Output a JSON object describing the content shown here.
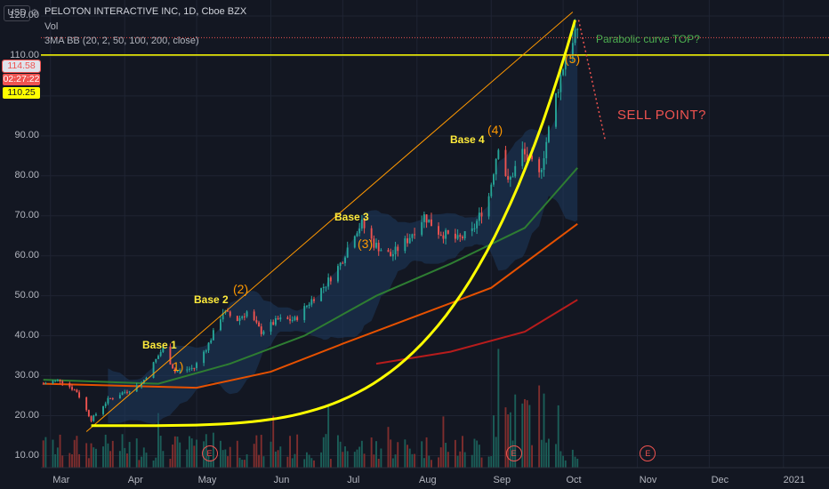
{
  "header": {
    "title": "PELOTON INTERACTIVE INC, 1D, Cboe BZX",
    "volume_label": "Vol",
    "indicator": "3MA BB (20, 2, 50, 100, 200, close)",
    "currency": "USD",
    "settings_icon": "gear-icon"
  },
  "price_tags": {
    "last_close": "114.58",
    "countdown": "02:27:22",
    "level": "110.25"
  },
  "annotations": {
    "base1": "Base 1",
    "base2": "Base 2",
    "base3": "Base 3",
    "base4": "Base 4",
    "wave1": "1)",
    "wave2": "(2)",
    "wave3": "(3)",
    "wave4": "(4)",
    "wave5": "(5)",
    "top_note": "Parabolic curve TOP?",
    "sell_note": "SELL POINT?",
    "earnings_marker": "E"
  },
  "colors": {
    "background": "#131722",
    "up": "#26a69a",
    "down": "#ef5350",
    "ma50": "#2e7d32",
    "ma100": "#e65100",
    "ma200": "#b71c1c",
    "curve": "#ffff00",
    "trendline": "#ff9800",
    "bb_fill": "#1e3a5f"
  },
  "chart_data": {
    "type": "candlestick",
    "title": "PELOTON INTERACTIVE INC, 1D, Cboe BZX",
    "y_ticks": [
      10,
      20,
      30,
      40,
      50,
      60,
      70,
      80,
      90,
      100,
      110,
      120
    ],
    "y_tick_labels": [
      "10.00",
      "20.00",
      "30.00",
      "40.00",
      "50.00",
      "60.00",
      "70.00",
      "80.00",
      "90.00",
      "100.00",
      "110.00",
      "120.00"
    ],
    "ylim": [
      7,
      124
    ],
    "x_tick_labels": [
      "Mar",
      "Apr",
      "May",
      "Jun",
      "Jul",
      "Aug",
      "Sep",
      "Oct",
      "Nov",
      "Dec",
      "2021"
    ],
    "x_tick_dates": [
      "2020-03-01",
      "2020-04-01",
      "2020-05-01",
      "2020-06-01",
      "2020-07-01",
      "2020-08-01",
      "2020-09-01",
      "2020-10-01",
      "2020-11-01",
      "2020-12-01",
      "2021-01-01"
    ],
    "xlim": [
      "2020-02-26",
      "2021-01-20"
    ],
    "grid": true,
    "price_keypoints": [
      [
        "2020-02-27",
        28
      ],
      [
        "2020-03-05",
        29
      ],
      [
        "2020-03-12",
        26
      ],
      [
        "2020-03-18",
        19
      ],
      [
        "2020-03-25",
        24
      ],
      [
        "2020-04-01",
        26
      ],
      [
        "2020-04-08",
        28
      ],
      [
        "2020-04-14",
        34
      ],
      [
        "2020-04-17",
        37
      ],
      [
        "2020-04-22",
        31
      ],
      [
        "2020-04-30",
        32
      ],
      [
        "2020-05-06",
        38
      ],
      [
        "2020-05-12",
        46
      ],
      [
        "2020-05-18",
        44
      ],
      [
        "2020-05-22",
        46
      ],
      [
        "2020-05-28",
        41
      ],
      [
        "2020-06-04",
        44
      ],
      [
        "2020-06-11",
        44
      ],
      [
        "2020-06-18",
        49
      ],
      [
        "2020-06-24",
        53
      ],
      [
        "2020-06-30",
        58
      ],
      [
        "2020-07-06",
        66
      ],
      [
        "2020-07-09",
        68
      ],
      [
        "2020-07-14",
        63
      ],
      [
        "2020-07-21",
        60
      ],
      [
        "2020-07-28",
        64
      ],
      [
        "2020-08-04",
        70
      ],
      [
        "2020-08-10",
        66
      ],
      [
        "2020-08-18",
        64
      ],
      [
        "2020-08-24",
        66
      ],
      [
        "2020-08-31",
        75
      ],
      [
        "2020-09-04",
        88
      ],
      [
        "2020-09-08",
        78
      ],
      [
        "2020-09-14",
        86
      ],
      [
        "2020-09-21",
        80
      ],
      [
        "2020-09-28",
        100
      ],
      [
        "2020-10-02",
        110
      ],
      [
        "2020-10-06",
        116
      ],
      [
        "2020-10-07",
        114.58
      ]
    ],
    "last_close": 114.58,
    "horizontal_level": 110.25,
    "volume_bars_present": true,
    "indicators": {
      "ma50": {
        "name": "MA 50",
        "points": [
          [
            "2020-02-27",
            29
          ],
          [
            "2020-04-15",
            28
          ],
          [
            "2020-05-15",
            33
          ],
          [
            "2020-06-15",
            40
          ],
          [
            "2020-07-15",
            50
          ],
          [
            "2020-08-15",
            58
          ],
          [
            "2020-09-15",
            67
          ],
          [
            "2020-10-07",
            82
          ]
        ]
      },
      "ma100": {
        "name": "MA 100",
        "points": [
          [
            "2020-02-27",
            28
          ],
          [
            "2020-05-01",
            27
          ],
          [
            "2020-06-01",
            31
          ],
          [
            "2020-07-01",
            38
          ],
          [
            "2020-08-01",
            45
          ],
          [
            "2020-09-01",
            52
          ],
          [
            "2020-10-07",
            68
          ]
        ]
      },
      "ma200": {
        "name": "MA 200",
        "points": [
          [
            "2020-07-15",
            33
          ],
          [
            "2020-08-15",
            36
          ],
          [
            "2020-09-15",
            41
          ],
          [
            "2020-10-07",
            49
          ]
        ]
      }
    },
    "earnings_dates": [
      "2020-05-06",
      "2020-09-10",
      "2020-11-05"
    ],
    "parabolic_curve": {
      "start": [
        "2020-03-18",
        17.5
      ],
      "end": [
        "2020-10-06",
        119
      ]
    },
    "trendline": {
      "start": [
        "2020-03-16",
        16
      ],
      "end": [
        "2020-10-05",
        121
      ]
    }
  }
}
